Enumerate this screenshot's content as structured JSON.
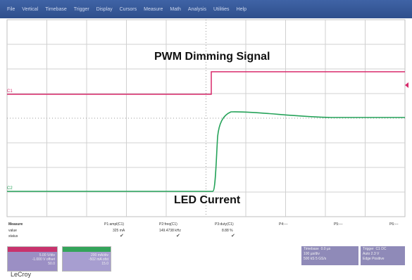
{
  "menu": [
    "File",
    "Vertical",
    "Timebase",
    "Trigger",
    "Display",
    "Cursors",
    "Measure",
    "Math",
    "Analysis",
    "Utilities",
    "Help"
  ],
  "annotations": {
    "pwm": "PWM Dimming Signal",
    "led": "LED Current"
  },
  "channel_markers": {
    "ch1": "C1",
    "ch2": "C2"
  },
  "measure": {
    "headers": [
      "Measure",
      "value",
      "status"
    ],
    "columns": [
      {
        "param": "P1:ampl(C1)",
        "value": "325 mA"
      },
      {
        "param": "P2:freq(C1)",
        "value": "149.4738 kHz"
      },
      {
        "param": "P3:duty(C1)",
        "value": "8.88 %"
      },
      {
        "param": "P4:---",
        "value": ""
      },
      {
        "param": "P5:---",
        "value": ""
      },
      {
        "param": "P6:---",
        "value": ""
      }
    ]
  },
  "channels": {
    "ch1": {
      "label": "C1",
      "unit": "BwL DC1M",
      "lines": [
        "5.00 V/div",
        "-1.000 V offset",
        "50.0"
      ]
    },
    "ch2": {
      "label": "C2",
      "unit": "BwL DC1M",
      "lines": [
        "200 mA/div",
        "-502 mA ofst",
        "15.0"
      ]
    }
  },
  "timebase": {
    "title": "Timebase",
    "value1": "0.0 µs",
    "line2": "100 µs/div",
    "line3": "500 kS  5 GS/s"
  },
  "trigger": {
    "title": "Trigger",
    "badge": "C1 DC",
    "line2": "Auto  2.3 V",
    "line3": "Edge  Positive"
  },
  "brand": "LeCroy",
  "colors": {
    "menu": "#2f4f8c",
    "pwm_trace": "#d8286a",
    "led_trace": "#26a35a",
    "grid": "#c8c8c8"
  }
}
